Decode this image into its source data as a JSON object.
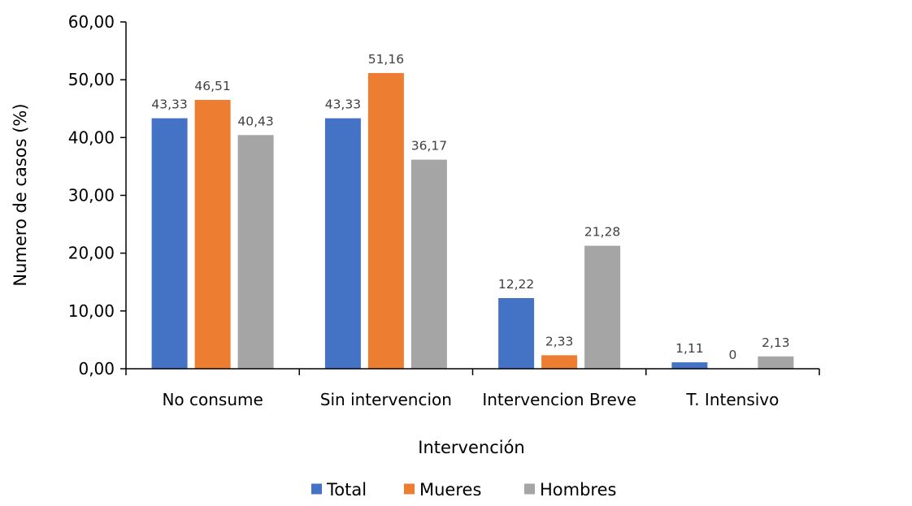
{
  "chart_data": {
    "type": "bar",
    "categories": [
      "No consume",
      "Sin intervencion",
      "Intervencion Breve",
      "T. Intensivo"
    ],
    "series": [
      {
        "name": "Total",
        "values": [
          43.33,
          43.33,
          12.22,
          1.11
        ],
        "labels": [
          "43,33",
          "43,33",
          "12,22",
          "1,11"
        ],
        "color": "#4472C4"
      },
      {
        "name": "Mueres",
        "values": [
          46.51,
          51.16,
          2.33,
          0
        ],
        "labels": [
          "46,51",
          "51,16",
          "2,33",
          "0"
        ],
        "color": "#ED7D31"
      },
      {
        "name": "Hombres",
        "values": [
          40.43,
          36.17,
          21.28,
          2.13
        ],
        "labels": [
          "40,43",
          "36,17",
          "21,28",
          "2,13"
        ],
        "color": "#A5A5A5"
      }
    ],
    "xlabel": "Intervención",
    "ylabel": "Numero de casos (%)",
    "ylim": [
      0,
      60
    ],
    "yticks": [
      0,
      10,
      20,
      30,
      40,
      50,
      60
    ],
    "ytick_labels": [
      "0,00",
      "10,00",
      "20,00",
      "30,00",
      "40,00",
      "50,00",
      "60,00"
    ],
    "grid": false,
    "legend_position": "bottom"
  }
}
